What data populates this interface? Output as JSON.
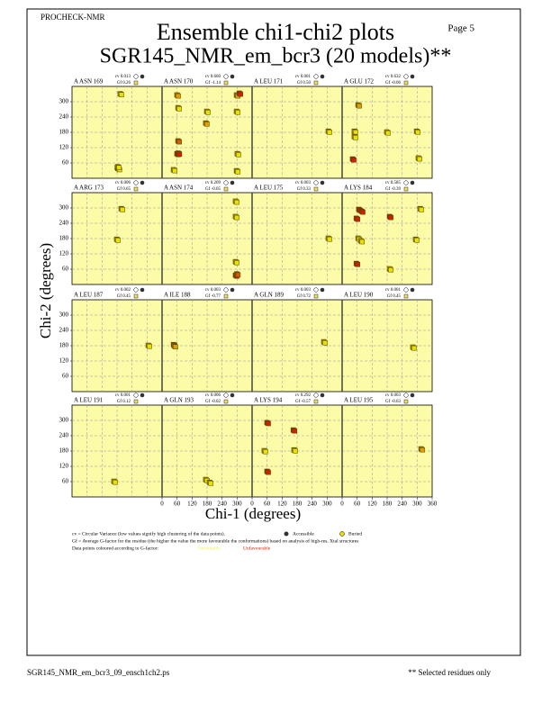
{
  "header": {
    "program": "PROCHECK-NMR",
    "page": "Page  5",
    "title": "Ensemble chi1-chi2 plots",
    "subtitle": "SGR145_NMR_em_bcr3 (20 models)**"
  },
  "chart_data": {
    "type": "scatter",
    "xlabel": "Chi-1 (degrees)",
    "ylabel": "Chi-2 (degrees)",
    "xlim": [
      0,
      360
    ],
    "ylim": [
      0,
      360
    ],
    "xticks": [
      0,
      60,
      120,
      180,
      240,
      300,
      360
    ],
    "yticks": [
      60,
      120,
      180,
      240,
      300
    ],
    "grid": true,
    "panels": [
      {
        "title": "A ASN 169",
        "cv": "cv 0.013",
        "gf": "Gf 0.26",
        "x": [
          182,
          186,
          184,
          194
        ],
        "y": [
          40,
          36,
          44,
          330
        ],
        "point_colors": [
          "#e8e000",
          "#e8e000",
          "#e8e000",
          "#e8e000"
        ]
      },
      {
        "title": "A ASN 170",
        "cv": "cv 0.660",
        "gf": "Gf -1.14",
        "x": [
          61,
          65,
          65,
          61,
          66,
          180,
          176,
          299,
          310,
          299,
          302,
          299,
          47
        ],
        "y": [
          325,
          275,
          145,
          95,
          97,
          261,
          215,
          325,
          332,
          261,
          95,
          28,
          32
        ],
        "point_colors": [
          "#e0a000",
          "#e8e000",
          "#d06000",
          "#d02000",
          "#d02000",
          "#e8e000",
          "#e0a000",
          "#e0a000",
          "#d02000",
          "#e8e000",
          "#e8e000",
          "#e8e000",
          "#e8e000"
        ]
      },
      {
        "title": "A LEU 171",
        "cv": "cv 0.001",
        "gf": "Gf 0.50",
        "x": [
          306
        ],
        "y": [
          183
        ],
        "point_colors": [
          "#e8e000"
        ]
      },
      {
        "title": "A GLU 172",
        "cv": "cv 0.632",
        "gf": "Gf -0.06",
        "x": [
          65,
          50,
          50,
          43,
          180,
          299,
          306
        ],
        "y": [
          286,
          183,
          162,
          74,
          180,
          183,
          78
        ],
        "point_colors": [
          "#e0a000",
          "#e8e000",
          "#e8e000",
          "#d02000",
          "#e8e000",
          "#e8e000",
          "#e8e000"
        ]
      },
      {
        "title": "A ARG 173",
        "cv": "cv 0.006",
        "gf": "Gf 0.65",
        "x": [
          180,
          198
        ],
        "y": [
          176,
          296
        ],
        "point_colors": [
          "#e8e000",
          "#e8e000"
        ]
      },
      {
        "title": "A ASN 174",
        "cv": "cv 0.209",
        "gf": "Gf -0.05",
        "x": [
          295,
          295,
          295,
          295,
          300
        ],
        "y": [
          325,
          265,
          88,
          35,
          40
        ],
        "point_colors": [
          "#e8e000",
          "#e8e000",
          "#e8e000",
          "#d02000",
          "#d06000"
        ]
      },
      {
        "title": "A LEU 175",
        "cv": "cv 0.003",
        "gf": "Gf 0.33",
        "x": [
          306
        ],
        "y": [
          180
        ],
        "point_colors": [
          "#e8e000"
        ]
      },
      {
        "title": "A LYS 184",
        "cv": "cv 0.585",
        "gf": "Gf -0.39",
        "x": [
          68,
          79,
          58,
          65,
          76,
          58,
          191,
          191,
          295,
          313
        ],
        "y": [
          293,
          286,
          258,
          180,
          170,
          81,
          265,
          60,
          176,
          296
        ],
        "point_colors": [
          "#d02000",
          "#d02000",
          "#d02000",
          "#e8e000",
          "#e8e000",
          "#d02000",
          "#d02000",
          "#e8e000",
          "#e8e000",
          "#e8e000"
        ]
      },
      {
        "title": "A LEU 187",
        "cv": "cv 0.002",
        "gf": "Gf 0.45",
        "x": [
          306
        ],
        "y": [
          180
        ],
        "point_colors": [
          "#e8e000"
        ]
      },
      {
        "title": "A ILE 188",
        "cv": "cv 0.003",
        "gf": "Gf -0.77",
        "x": [
          47,
          50
        ],
        "y": [
          183,
          178
        ],
        "point_colors": [
          "#d06000",
          "#e0a000"
        ]
      },
      {
        "title": "A GLN 189",
        "cv": "cv 0.003",
        "gf": "Gf 0.72",
        "x": [
          288
        ],
        "y": [
          194
        ],
        "point_colors": [
          "#e8e000"
        ]
      },
      {
        "title": "A LEU 190",
        "cv": "cv 0.001",
        "gf": "Gf 0.45",
        "x": [
          284
        ],
        "y": [
          173
        ],
        "point_colors": [
          "#e8e000"
        ]
      },
      {
        "title": "A LEU 191",
        "cv": "cv 0.001",
        "gf": "Gf 0.12",
        "x": [
          169
        ],
        "y": [
          60
        ],
        "point_colors": [
          "#e8e000"
        ]
      },
      {
        "title": "A GLN 193",
        "cv": "cv 0.006",
        "gf": "Gf -0.02",
        "x": [
          176,
          191
        ],
        "y": [
          67,
          56
        ],
        "point_colors": [
          "#e8e000",
          "#e8e000"
        ]
      },
      {
        "title": "A LYS 194",
        "cv": "cv 0.292",
        "gf": "Gf -0.57",
        "x": [
          50,
          61,
          61,
          166,
          169
        ],
        "y": [
          180,
          290,
          99,
          261,
          183
        ],
        "point_colors": [
          "#e8e000",
          "#d02000",
          "#d02000",
          "#d02000",
          "#e8e000"
        ]
      },
      {
        "title": "A LEU 195",
        "cv": "cv 0.003",
        "gf": "Gf -0.63",
        "x": [
          317
        ],
        "y": [
          187
        ],
        "point_colors": [
          "#e0a000"
        ]
      }
    ]
  },
  "legend": {
    "cv_text": "cv = Circular Variance (low values signify high clustering of the data points).",
    "accessible": "Accessible",
    "buried": "Buried",
    "gf_text": "Gf = Average G-factor for the residue (the higher the value the more favourable the conformations) based on analysis of high-res. Xtal structures",
    "colour_text": "Data points coloured according to G-factor:",
    "favourable": "Favourable",
    "unfavourable": "Unfavourable"
  },
  "footer": {
    "filename": "SGR145_NMR_em_bcr3_09_ensch1ch2.ps",
    "note": "** Selected residues only"
  }
}
